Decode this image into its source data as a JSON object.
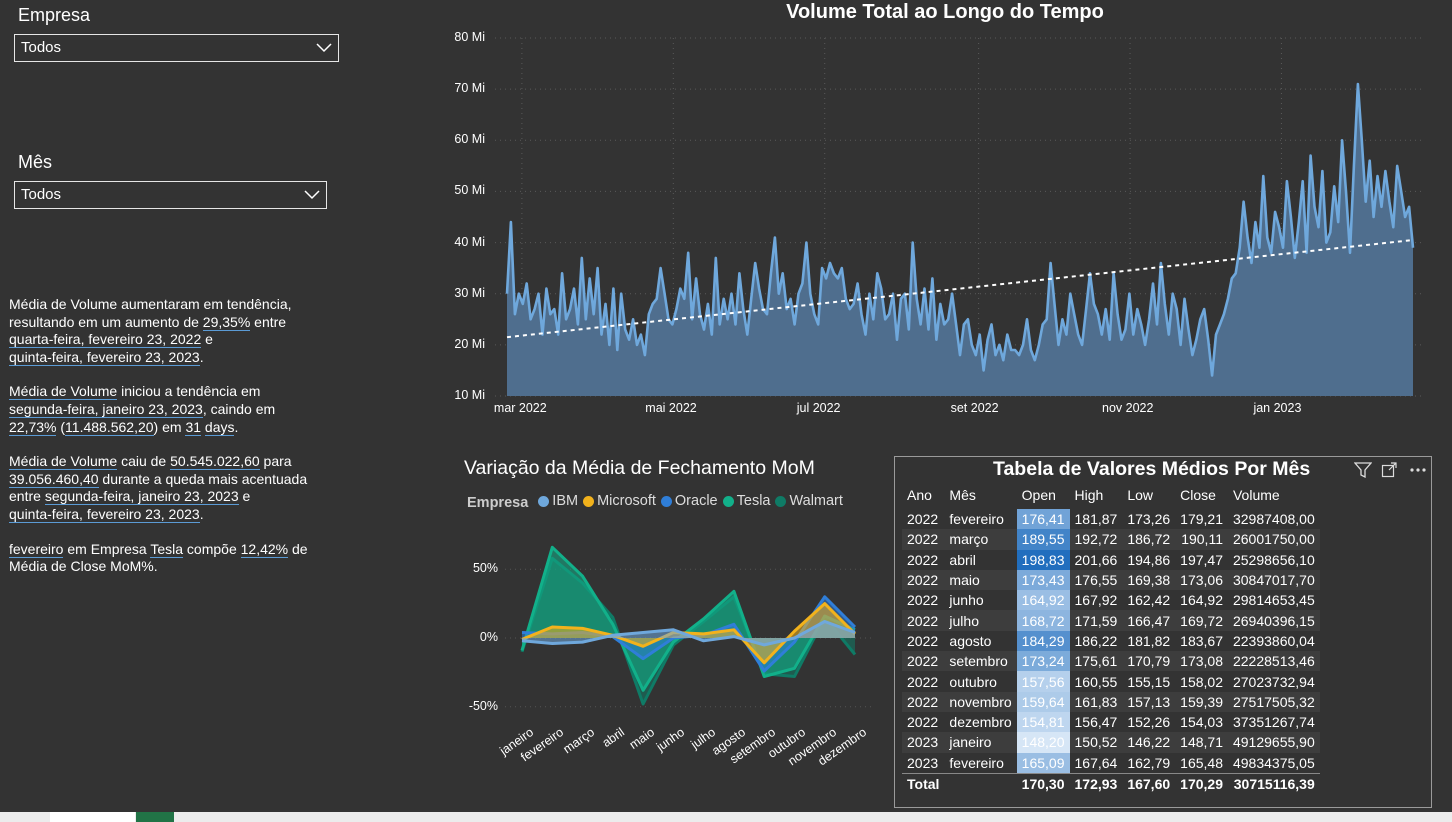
{
  "slicers": {
    "empresa": {
      "label": "Empresa",
      "value": "Todos"
    },
    "mes": {
      "label": "Mês",
      "value": "Todos"
    }
  },
  "narrative": {
    "p1": {
      "a": "Média de Volume aumentaram em tendência,",
      "b": "resultando em um aumento de ",
      "b_link": "29,35%",
      "b_end": " entre",
      "c_link": "quarta-feira, fevereiro 23, 2022",
      "c_end": " e",
      "d_link": "quinta-feira, fevereiro 23, 2023",
      "d_end": "."
    },
    "p2": {
      "a_link": "Média de Volume",
      "a_end": " iniciou a tendência em",
      "b_link": "segunda-feira, janeiro 23, 2023",
      "b_end": ", caindo em",
      "c_link": "22,73%",
      "c_mid": " (",
      "c_link2": "11.488.562,20",
      "c_mid2": ") em ",
      "c_link3": "31",
      "c_sp": " ",
      "c_link4": "days",
      "c_end": "."
    },
    "p3": {
      "a_link": "Média de Volume",
      "a_mid": " caiu de ",
      "a_link2": "50.545.022,60",
      "a_end": " para",
      "b_link": "39.056.460,40",
      "b_end": " durante a queda mais acentuada",
      "c": "entre ",
      "c_link": "segunda-feira, janeiro 23, 2023",
      "c_end": " e",
      "d_link": "quinta-feira, fevereiro 23, 2023",
      "d_end": "."
    },
    "p4": {
      "a_link": "fevereiro",
      "a_mid": " em Empresa ",
      "a_link2": "Tesla",
      "a_mid2": " compõe ",
      "a_link3": "12,42%",
      "a_end": " de",
      "b": "Média de Close MoM%."
    }
  },
  "volume_chart": {
    "title": "Volume Total ao Longo do Tempo",
    "yticks": [
      "80 Mi",
      "70 Mi",
      "60 Mi",
      "50 Mi",
      "40 Mi",
      "30 Mi",
      "20 Mi",
      "10 Mi"
    ],
    "xticks": [
      "mar 2022",
      "mai 2022",
      "jul 2022",
      "set 2022",
      "nov 2022",
      "jan 2023"
    ],
    "color": "#6fa8dc",
    "area_color": "#4f6e8e"
  },
  "mom_chart": {
    "title": "Variação da Média de Fechamento MoM",
    "legend_title": "Empresa",
    "yticks": [
      "50%",
      "0%",
      "-50%"
    ],
    "months": [
      "janeiro",
      "fevereiro",
      "março",
      "abril",
      "maio",
      "junho",
      "julho",
      "agosto",
      "setembro",
      "outubro",
      "novembro",
      "dezembro"
    ]
  },
  "table": {
    "title": "Tabela de Valores Médios Por Mês",
    "columns": [
      "Ano",
      "Mês",
      "Open",
      "High",
      "Low",
      "Close",
      "Volume"
    ],
    "rows": [
      [
        "2022",
        "fevereiro",
        "176,41",
        "181,87",
        "173,26",
        "179,21",
        "32987408,00"
      ],
      [
        "2022",
        "março",
        "189,55",
        "192,72",
        "186,72",
        "190,11",
        "26001750,00"
      ],
      [
        "2022",
        "abril",
        "198,83",
        "201,66",
        "194,86",
        "197,47",
        "25298656,10"
      ],
      [
        "2022",
        "maio",
        "173,43",
        "176,55",
        "169,38",
        "173,06",
        "30847017,70"
      ],
      [
        "2022",
        "junho",
        "164,92",
        "167,92",
        "162,42",
        "164,92",
        "29814653,45"
      ],
      [
        "2022",
        "julho",
        "168,72",
        "171,59",
        "166,47",
        "169,72",
        "26940396,15"
      ],
      [
        "2022",
        "agosto",
        "184,29",
        "186,22",
        "181,82",
        "183,67",
        "22393860,04"
      ],
      [
        "2022",
        "setembro",
        "173,24",
        "175,61",
        "170,79",
        "173,08",
        "22228513,46"
      ],
      [
        "2022",
        "outubro",
        "157,56",
        "160,55",
        "155,15",
        "158,02",
        "27023732,94"
      ],
      [
        "2022",
        "novembro",
        "159,64",
        "161,83",
        "157,13",
        "159,39",
        "27517505,32"
      ],
      [
        "2022",
        "dezembro",
        "154,81",
        "156,47",
        "152,26",
        "154,03",
        "37351267,74"
      ],
      [
        "2023",
        "janeiro",
        "148,20",
        "150,52",
        "146,22",
        "148,71",
        "49129655,90"
      ],
      [
        "2023",
        "fevereiro",
        "165,09",
        "167,64",
        "162,79",
        "165,48",
        "49834375,05"
      ]
    ],
    "total": [
      "Total",
      "",
      "170,30",
      "172,93",
      "167,60",
      "170,29",
      "30715116,39"
    ]
  },
  "chart_data": [
    {
      "type": "area",
      "title": "Volume Total ao Longo do Tempo",
      "ylim": [
        10,
        80
      ],
      "yunit": "Mi",
      "x_start": "2022-02-23",
      "x_end": "2023-02-23",
      "trend": {
        "start": 21.5,
        "end": 40.5
      },
      "values": [
        30,
        44,
        26,
        30,
        28,
        32,
        25,
        27,
        30,
        22,
        31,
        26,
        27,
        22,
        34,
        25,
        27,
        31,
        24,
        37,
        25,
        33,
        26,
        35,
        22,
        28,
        20,
        31,
        19,
        30,
        23,
        21,
        25,
        20,
        22,
        18,
        26,
        28,
        29,
        35,
        30,
        25,
        24,
        27,
        31,
        29,
        38,
        25,
        33,
        26,
        23,
        28,
        22,
        37,
        24,
        29,
        25,
        30,
        24,
        34,
        27,
        22,
        29,
        36,
        31,
        27,
        26,
        34,
        41,
        30,
        34,
        27,
        29,
        24,
        30,
        32,
        40,
        30,
        26,
        24,
        35,
        33,
        36,
        34,
        33,
        35,
        29,
        27,
        28,
        32,
        26,
        22,
        30,
        25,
        34,
        31,
        25,
        26,
        30,
        21,
        29,
        30,
        23,
        40,
        29,
        24,
        31,
        23,
        33,
        21,
        28,
        24,
        25,
        30,
        24,
        18,
        24,
        25,
        20,
        18,
        22,
        15,
        21,
        24,
        18,
        20,
        17,
        22,
        19,
        19,
        18,
        20,
        25,
        19,
        17,
        20,
        24,
        25,
        36,
        28,
        20,
        25,
        22,
        30,
        26,
        22,
        20,
        27,
        34,
        28,
        26,
        22,
        27,
        21,
        34,
        26,
        21,
        23,
        30,
        22,
        27,
        24,
        20,
        25,
        32,
        24,
        36,
        28,
        22,
        30,
        27,
        20,
        29,
        23,
        18,
        21,
        25,
        27,
        21,
        14,
        22,
        24,
        26,
        29,
        33,
        34,
        39,
        48,
        41,
        36,
        44,
        39,
        53,
        41,
        38,
        46,
        43,
        39,
        52,
        45,
        37,
        44,
        52,
        38,
        57,
        47,
        43,
        54,
        40,
        42,
        51,
        44,
        60,
        50,
        38,
        55,
        71,
        60,
        48,
        56,
        45,
        53,
        47,
        54,
        48,
        43,
        55,
        50,
        45,
        47,
        39
      ]
    },
    {
      "type": "area",
      "title": "Variação da Média de Fechamento MoM",
      "categories": [
        "janeiro",
        "fevereiro",
        "março",
        "abril",
        "maio",
        "junho",
        "julho",
        "agosto",
        "setembro",
        "outubro",
        "novembro",
        "dezembro"
      ],
      "ylim": [
        -60,
        70
      ],
      "series": [
        {
          "name": "IBM",
          "color": "#6fa8dc",
          "values": [
            -2,
            -4,
            -3,
            2,
            4,
            6,
            -2,
            1,
            -5,
            0,
            12,
            4
          ]
        },
        {
          "name": "Microsoft",
          "color": "#f2b21c",
          "values": [
            -1,
            8,
            7,
            2,
            -6,
            4,
            3,
            6,
            -18,
            5,
            25,
            3
          ]
        },
        {
          "name": "Oracle",
          "color": "#2f7ed8",
          "values": [
            4,
            3,
            4,
            1,
            -15,
            0,
            2,
            10,
            -24,
            -3,
            30,
            8
          ]
        },
        {
          "name": "Tesla",
          "color": "#12b08a",
          "values": [
            -9,
            66,
            45,
            10,
            -38,
            -3,
            14,
            34,
            -28,
            -22,
            16,
            6
          ]
        },
        {
          "name": "Walmart",
          "color": "#0f7b66",
          "values": [
            -10,
            58,
            40,
            15,
            -48,
            -5,
            12,
            30,
            -26,
            -28,
            15,
            -12
          ]
        }
      ]
    }
  ]
}
